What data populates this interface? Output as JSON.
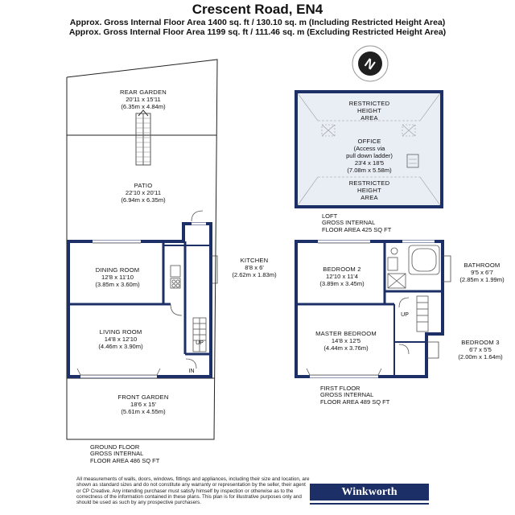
{
  "title": "Crescent Road, EN4",
  "areas": {
    "line1": "Approx. Gross Internal Floor Area 1400 sq. ft / 130.10 sq. m (Including Restricted Height Area)",
    "line2": "Approx. Gross Internal Floor Area 1199 sq. ft / 111.46 sq. m (Excluding Restricted Height Area)"
  },
  "compass": {
    "icon": "north-arrow-icon",
    "letter": "N"
  },
  "rooms": {
    "rear_garden": {
      "name": "REAR GARDEN",
      "dim_imperial": "20'11 x 15'11",
      "dim_metric": "(6.35m x 4.84m)"
    },
    "patio": {
      "name": "PATIO",
      "dim_imperial": "22'10 x 20'11",
      "dim_metric": "(6.94m x 6.35m)"
    },
    "dining": {
      "name": "DINING ROOM",
      "dim_imperial": "12'8 x 11'10",
      "dim_metric": "(3.85m x 3.60m)"
    },
    "kitchen": {
      "name": "KITCHEN",
      "dim_imperial": "8'8 x 6'",
      "dim_metric": "(2.62m x 1.83m)"
    },
    "living": {
      "name": "LIVING ROOM",
      "dim_imperial": "14'8 x 12'10",
      "dim_metric": "(4.46m x 3.90m)"
    },
    "front_garden": {
      "name": "FRONT GARDEN",
      "dim_imperial": "18'6 x 15'",
      "dim_metric": "(5.61m x 4.55m)"
    },
    "office": {
      "name": "OFFICE",
      "note1": "(Access via",
      "note2": "pull down ladder)",
      "dim_imperial": "23'4 x 18'5",
      "dim_metric": "(7.08m x 5.58m)"
    },
    "restricted_top": {
      "line1": "RESTRICTED",
      "line2": "HEIGHT",
      "line3": "AREA"
    },
    "restricted_bottom": {
      "line1": "RESTRICTED",
      "line2": "HEIGHT",
      "line3": "AREA"
    },
    "bedroom2": {
      "name": "BEDROOM 2",
      "dim_imperial": "12'10 x 11'4",
      "dim_metric": "(3.89m x 3.45m)"
    },
    "bathroom": {
      "name": "BATHROOM",
      "dim_imperial": "9'5 x 6'7",
      "dim_metric": "(2.85m x 1.99m)"
    },
    "master": {
      "name": "MASTER BEDROOM",
      "dim_imperial": "14'8 x 12'5",
      "dim_metric": "(4.44m x 3.76m)"
    },
    "bedroom3": {
      "name": "BEDROOM 3",
      "dim_imperial": "6'7 x 5'5",
      "dim_metric": "(2.00m x 1.64m)"
    }
  },
  "markers": {
    "up_ground": "UP",
    "in": "IN",
    "up_first": "UP"
  },
  "floors": {
    "loft": {
      "line1": "LOFT",
      "line2": "GROSS INTERNAL",
      "line3": "FLOOR AREA 425 SQ FT"
    },
    "ground": {
      "line1": "GROUND FLOOR",
      "line2": "GROSS INTERNAL",
      "line3": "FLOOR AREA 486 SQ FT"
    },
    "first": {
      "line1": "FIRST FLOOR",
      "line2": "GROSS INTERNAL",
      "line3": "FLOOR AREA 489 SQ FT"
    }
  },
  "disclaimer": "All measurements of walls, doors, windows, fittings and appliances, including their size and location, are shown as standard sizes and do not constitute any warranty or representation by the seller, their agent or CP Creative. Any intending purchaser must satisfy himself by inspection or otherwise as to the correctness of the information contained in these plans. This plan is for illustrative purposes only and should be used as such by any prospective purchasers.",
  "brand": "Winkworth",
  "colors": {
    "wall": "#1c2f66",
    "loft_fill": "#e8ecf3",
    "brand_bg": "#1c2f66"
  }
}
